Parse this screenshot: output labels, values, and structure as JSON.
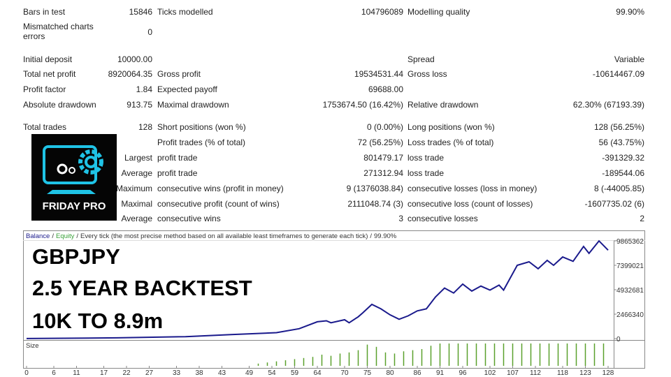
{
  "report": {
    "rows": [
      [
        "Bars in test",
        "15846",
        "Ticks modelled",
        "104796089",
        "Modelling quality",
        "99.90%"
      ],
      [
        "Mismatched charts errors",
        "0",
        null,
        null,
        null,
        null
      ],
      [
        "Initial deposit",
        "10000.00",
        null,
        null,
        "Spread",
        "Variable"
      ],
      [
        "Total net profit",
        "8920064.35",
        "Gross profit",
        "19534531.44",
        "Gross loss",
        "-10614467.09"
      ],
      [
        "Profit factor",
        "1.84",
        "Expected payoff",
        "69688.00",
        null,
        null
      ],
      [
        "Absolute drawdown",
        "913.75",
        "Maximal drawdown",
        "1753674.50 (16.42%)",
        "Relative drawdown",
        "62.30% (67193.39)"
      ],
      [
        "Total trades",
        "128",
        "Short positions (won %)",
        "0 (0.00%)",
        "Long positions (won %)",
        "128 (56.25%)"
      ],
      [
        null,
        null,
        "Profit trades (% of total)",
        "72 (56.25%)",
        "Loss trades (% of total)",
        "56 (43.75%)"
      ],
      [
        "Largest",
        null,
        "profit trade",
        "801479.17",
        "loss trade",
        "-391329.32"
      ],
      [
        "Average",
        null,
        "profit trade",
        "271312.94",
        "loss trade",
        "-189544.06"
      ],
      [
        "Maximum",
        null,
        "consecutive wins (profit in money)",
        "9 (1376038.84)",
        "consecutive losses (loss in money)",
        "8 (-44005.85)"
      ],
      [
        "Maximal",
        null,
        "consecutive profit (count of wins)",
        "2111048.74 (3)",
        "consecutive loss (count of losses)",
        "-1607735.02 (6)"
      ],
      [
        "Average",
        null,
        "consecutive wins",
        "3",
        "consecutive losses",
        "2"
      ]
    ]
  },
  "overlay": {
    "logo_text": "FRIDAY PRO",
    "lines": [
      "GBPJPY",
      "2.5 YEAR BACKTEST",
      "10K TO 8.9m"
    ]
  },
  "chart_data": {
    "type": "line",
    "header": [
      "Balance",
      "Equity",
      "Every tick (the most precise method based on all available least timeframes to generate each tick)",
      "99.90%"
    ],
    "separator": "/",
    "xlim": [
      0,
      128
    ],
    "xticks": [
      0,
      6,
      11,
      17,
      22,
      27,
      33,
      38,
      43,
      49,
      54,
      59,
      64,
      70,
      75,
      80,
      86,
      91,
      96,
      102,
      107,
      112,
      118,
      123,
      128
    ],
    "ylim": [
      0,
      10780000
    ],
    "yticks": [
      0,
      2466340,
      4932681,
      7399021,
      9865362
    ],
    "series": [
      {
        "name": "Balance",
        "color": "#1a1a8c",
        "x": [
          0,
          20,
          35,
          45,
          55,
          60,
          64,
          66,
          67,
          70,
          71,
          73,
          74,
          76,
          78,
          80,
          82,
          84,
          86,
          88,
          90,
          92,
          94,
          96,
          98,
          100,
          102,
          104,
          105,
          108,
          110.6,
          112.6,
          114.6,
          116,
          118,
          120.3,
          122.6,
          123.8,
          126,
          128
        ],
        "values": [
          10000,
          80000,
          200000,
          400000,
          600000,
          1000000,
          1700000,
          1800000,
          1600000,
          1900000,
          1600000,
          2200000,
          2600000,
          3450000,
          3000000,
          2400000,
          1950000,
          2300000,
          2800000,
          3000000,
          4200000,
          5100000,
          4600000,
          5500000,
          4800000,
          5300000,
          4900000,
          5400000,
          4900000,
          7400000,
          7750000,
          7050000,
          7900000,
          7400000,
          8240000,
          7800000,
          9300000,
          8600000,
          9860000,
          8930064
        ]
      }
    ],
    "size": {
      "name": "Size",
      "color": "#5aa02c",
      "x": [
        51,
        53,
        55,
        57,
        59,
        61,
        63,
        65,
        67,
        69,
        71,
        73,
        75,
        77,
        79,
        81,
        83,
        85,
        87,
        89,
        91,
        93,
        95,
        97,
        99,
        101,
        103,
        105,
        107,
        109,
        111,
        113,
        115,
        117,
        119,
        121,
        123,
        125,
        127
      ],
      "values": [
        0.1,
        0.15,
        0.2,
        0.25,
        0.3,
        0.35,
        0.4,
        0.5,
        0.45,
        0.55,
        0.6,
        0.7,
        0.95,
        0.85,
        0.6,
        0.55,
        0.65,
        0.7,
        0.75,
        0.9,
        1,
        1,
        1,
        1,
        1,
        1,
        1,
        1,
        1,
        1,
        1,
        1,
        1,
        1,
        1,
        1,
        1,
        1,
        1
      ]
    }
  }
}
